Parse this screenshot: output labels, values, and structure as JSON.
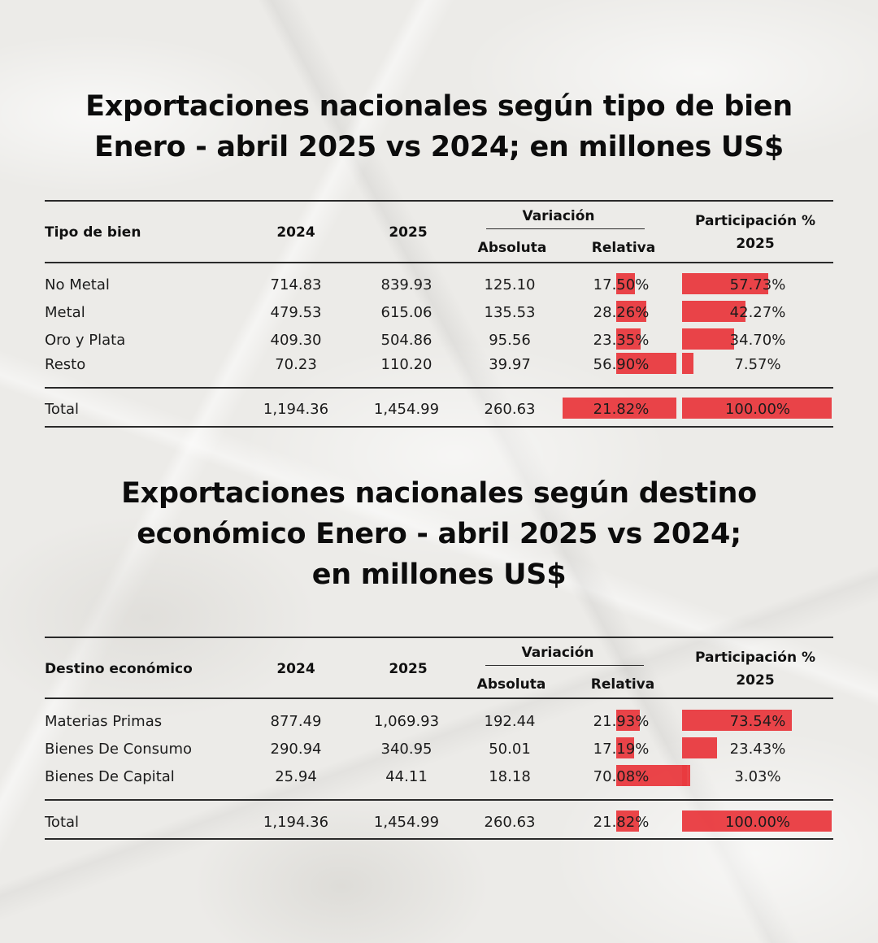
{
  "colors": {
    "bar": "#e93a3f",
    "text": "#141414",
    "background": "#ecebe8"
  },
  "table1": {
    "title_lines": [
      "Exportaciones nacionales según tipo de bien",
      "Enero - abril 2025 vs 2024; en millones US$"
    ],
    "headers": {
      "category": "Tipo de bien",
      "y2024": "2024",
      "y2025": "2025",
      "variacion": "Variación",
      "absoluta": "Absoluta",
      "relativa": "Relativa",
      "participacion_l1": "Participación %",
      "participacion_l2": "2025"
    },
    "rows": [
      {
        "name": "No Metal",
        "v2024": "714.83",
        "v2025": "839.93",
        "abs": "125.10",
        "rel": "17.50%",
        "part": "57.73%"
      },
      {
        "name": "Metal",
        "v2024": "479.53",
        "v2025": "615.06",
        "abs": "135.53",
        "rel": "28.26%",
        "part": "42.27%"
      },
      {
        "name": "Oro y Plata",
        "v2024": "409.30",
        "v2025": "504.86",
        "abs": "95.56",
        "rel": "23.35%",
        "part": "34.70%"
      },
      {
        "name": "Resto",
        "v2024": "70.23",
        "v2025": "110.20",
        "abs": "39.97",
        "rel": "56.90%",
        "part": "7.57%"
      }
    ],
    "total": {
      "name": "Total",
      "v2024": "1,194.36",
      "v2025": "1,454.99",
      "abs": "260.63",
      "rel": "21.82%",
      "part": "100.00%"
    }
  },
  "table2": {
    "title_lines": [
      "Exportaciones nacionales según destino",
      "económico Enero - abril 2025 vs 2024;",
      "en millones US$"
    ],
    "headers": {
      "category": "Destino económico",
      "y2024": "2024",
      "y2025": "2025",
      "variacion": "Variación",
      "absoluta": "Absoluta",
      "relativa": "Relativa",
      "participacion_l1": "Participación %",
      "participacion_l2": "2025"
    },
    "rows": [
      {
        "name": "Materias Primas",
        "v2024": "877.49",
        "v2025": "1,069.93",
        "abs": "192.44",
        "rel": "21.93%",
        "part": "73.54%"
      },
      {
        "name": "Bienes De Consumo",
        "v2024": "290.94",
        "v2025": "340.95",
        "abs": "50.01",
        "rel": "17.19%",
        "part": "23.43%"
      },
      {
        "name": "Bienes De Capital",
        "v2024": "25.94",
        "v2025": "44.11",
        "abs": "18.18",
        "rel": "70.08%",
        "part": "3.03%"
      }
    ],
    "total": {
      "name": "Total",
      "v2024": "1,194.36",
      "v2025": "1,454.99",
      "abs": "260.63",
      "rel": "21.82%",
      "part": "100.00%"
    }
  }
}
